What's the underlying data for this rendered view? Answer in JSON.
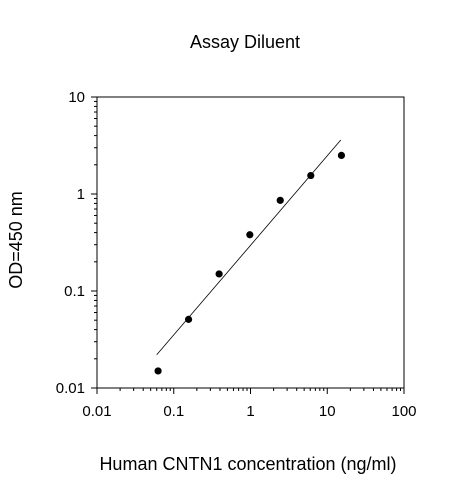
{
  "chart_data": {
    "type": "scatter",
    "title": "Assay Diluent",
    "xlabel": "Human CNTN1 concentration (ng/ml)",
    "ylabel": "OD=450 nm",
    "xscale": "log",
    "yscale": "log",
    "xlim": [
      0.01,
      100
    ],
    "ylim": [
      0.01,
      10
    ],
    "x_ticks": [
      0.01,
      0.1,
      1,
      10,
      100
    ],
    "x_tick_labels": [
      "0.01",
      "0.1",
      "1",
      "10",
      "100"
    ],
    "y_ticks": [
      0.01,
      0.1,
      1,
      10
    ],
    "y_tick_labels": [
      "0.01",
      "0.1",
      "1",
      "10"
    ],
    "grid": false,
    "series": [
      {
        "type": "scatter",
        "marker_color": "#000000",
        "x": [
          0.0625,
          0.156,
          0.39,
          0.98,
          2.44,
          6.1,
          15.3
        ],
        "y": [
          0.015,
          0.051,
          0.15,
          0.38,
          0.86,
          1.55,
          2.5
        ]
      }
    ],
    "fit_line": {
      "color": "#000000",
      "x": [
        0.06,
        15
      ],
      "y": [
        0.022,
        3.6
      ]
    }
  }
}
